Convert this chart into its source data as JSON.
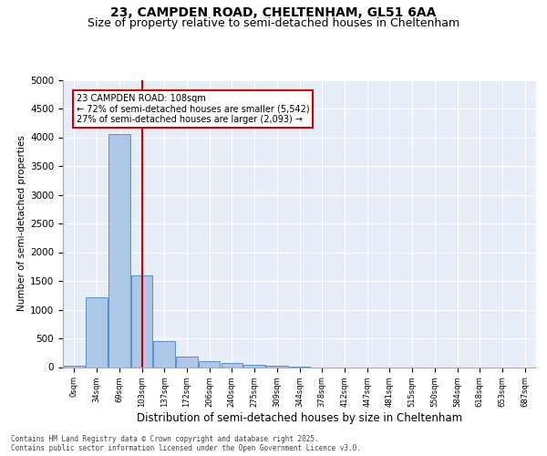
{
  "title1": "23, CAMPDEN ROAD, CHELTENHAM, GL51 6AA",
  "title2": "Size of property relative to semi-detached houses in Cheltenham",
  "xlabel": "Distribution of semi-detached houses by size in Cheltenham",
  "ylabel": "Number of semi-detached properties",
  "categories": [
    "0sqm",
    "34sqm",
    "69sqm",
    "103sqm",
    "137sqm",
    "172sqm",
    "206sqm",
    "240sqm",
    "275sqm",
    "309sqm",
    "344sqm",
    "378sqm",
    "412sqm",
    "447sqm",
    "481sqm",
    "515sqm",
    "550sqm",
    "584sqm",
    "618sqm",
    "653sqm",
    "687sqm"
  ],
  "values": [
    25,
    1220,
    4050,
    1600,
    460,
    175,
    110,
    70,
    40,
    25,
    10,
    0,
    0,
    0,
    0,
    0,
    0,
    0,
    0,
    0,
    0
  ],
  "bar_color": "#aec6e8",
  "bar_edge_color": "#5a8fc2",
  "property_line_x": 3,
  "annotation_text": "23 CAMPDEN ROAD: 108sqm\n← 72% of semi-detached houses are smaller (5,542)\n27% of semi-detached houses are larger (2,093) →",
  "ylim": [
    0,
    5000
  ],
  "yticks": [
    0,
    500,
    1000,
    1500,
    2000,
    2500,
    3000,
    3500,
    4000,
    4500,
    5000
  ],
  "background_color": "#e8eef8",
  "grid_color": "#ffffff",
  "footer": "Contains HM Land Registry data © Crown copyright and database right 2025.\nContains public sector information licensed under the Open Government Licence v3.0.",
  "title1_fontsize": 10,
  "title2_fontsize": 9,
  "annotation_box_color": "#ffffff",
  "annotation_box_edge": "#cc0000",
  "red_line_color": "#cc0000"
}
